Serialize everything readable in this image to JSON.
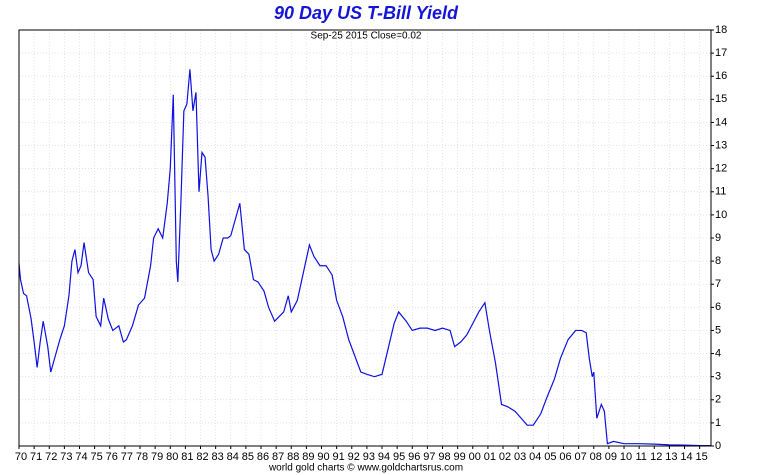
{
  "chart_data": {
    "type": "line",
    "title": "90 Day US T-Bill Yield",
    "subtitle": "Sep-25  2015   Close=0.02",
    "footer": "world gold charts © www.goldchartsrus.com",
    "grid": true,
    "series": [
      {
        "name": "90 Day US T-Bill Yield",
        "color": "#1010e0",
        "x": [
          1970.0,
          1970.1,
          1970.3,
          1970.5,
          1970.8,
          1971.0,
          1971.2,
          1971.4,
          1971.6,
          1971.9,
          1972.1,
          1972.4,
          1972.7,
          1973.0,
          1973.3,
          1973.5,
          1973.7,
          1973.9,
          1974.1,
          1974.3,
          1974.6,
          1974.9,
          1975.1,
          1975.4,
          1975.6,
          1975.9,
          1976.2,
          1976.6,
          1976.9,
          1977.1,
          1977.5,
          1977.9,
          1978.3,
          1978.7,
          1978.9,
          1979.2,
          1979.5,
          1979.8,
          1980.0,
          1980.2,
          1980.4,
          1980.5,
          1980.7,
          1980.9,
          1981.1,
          1981.3,
          1981.5,
          1981.7,
          1981.9,
          1982.1,
          1982.3,
          1982.5,
          1982.7,
          1982.9,
          1983.2,
          1983.5,
          1983.8,
          1984.0,
          1984.3,
          1984.6,
          1984.9,
          1985.2,
          1985.5,
          1985.8,
          1986.2,
          1986.5,
          1986.9,
          1987.2,
          1987.5,
          1987.8,
          1988.0,
          1988.4,
          1988.8,
          1989.2,
          1989.5,
          1989.9,
          1990.3,
          1990.7,
          1991.0,
          1991.4,
          1991.8,
          1992.2,
          1992.6,
          1993.0,
          1993.5,
          1994.0,
          1994.4,
          1994.8,
          1995.1,
          1995.6,
          1996.0,
          1996.5,
          1997.0,
          1997.5,
          1998.0,
          1998.5,
          1998.8,
          1999.2,
          1999.6,
          2000.0,
          2000.4,
          2000.8,
          2001.1,
          2001.5,
          2001.9,
          2002.3,
          2002.8,
          2003.2,
          2003.6,
          2004.0,
          2004.5,
          2004.9,
          2005.4,
          2005.8,
          2006.3,
          2006.8,
          2007.2,
          2007.5,
          2007.7,
          2007.9,
          2008.0,
          2008.2,
          2008.5,
          2008.7,
          2008.9,
          2009.3,
          2010.0,
          2011.0,
          2012.0,
          2013.0,
          2014.0,
          2015.0,
          2015.73
        ],
        "values": [
          7.9,
          7.2,
          6.6,
          6.5,
          5.5,
          4.5,
          3.4,
          4.5,
          5.4,
          4.3,
          3.2,
          3.9,
          4.6,
          5.2,
          6.5,
          8.0,
          8.5,
          7.5,
          7.8,
          8.8,
          7.5,
          7.2,
          5.6,
          5.2,
          6.4,
          5.5,
          5.0,
          5.2,
          4.5,
          4.6,
          5.2,
          6.1,
          6.4,
          7.8,
          9.0,
          9.4,
          9.0,
          10.5,
          12.0,
          15.2,
          8.0,
          7.1,
          10.5,
          14.5,
          14.8,
          16.3,
          14.5,
          15.3,
          11.0,
          12.7,
          12.5,
          10.8,
          8.5,
          8.0,
          8.3,
          9.0,
          9.0,
          9.1,
          9.8,
          10.5,
          8.5,
          8.3,
          7.2,
          7.1,
          6.7,
          6.0,
          5.4,
          5.6,
          5.8,
          6.5,
          5.8,
          6.3,
          7.5,
          8.7,
          8.2,
          7.8,
          7.8,
          7.4,
          6.3,
          5.6,
          4.6,
          3.9,
          3.2,
          3.1,
          3.0,
          3.1,
          4.2,
          5.3,
          5.8,
          5.4,
          5.0,
          5.1,
          5.1,
          5.0,
          5.1,
          5.0,
          4.3,
          4.5,
          4.8,
          5.3,
          5.8,
          6.2,
          5.0,
          3.6,
          1.8,
          1.7,
          1.5,
          1.2,
          0.9,
          0.9,
          1.4,
          2.1,
          2.9,
          3.8,
          4.6,
          5.0,
          5.0,
          4.9,
          3.8,
          3.0,
          3.2,
          1.2,
          1.8,
          1.5,
          0.1,
          0.2,
          0.1,
          0.1,
          0.08,
          0.05,
          0.04,
          0.02,
          0.02
        ]
      }
    ],
    "xlim": [
      1970,
      2015.75
    ],
    "xticks": [
      {
        "value": 1970,
        "label": "70"
      },
      {
        "value": 1971,
        "label": "71"
      },
      {
        "value": 1972,
        "label": "72"
      },
      {
        "value": 1973,
        "label": "73"
      },
      {
        "value": 1974,
        "label": "74"
      },
      {
        "value": 1975,
        "label": "75"
      },
      {
        "value": 1976,
        "label": "76"
      },
      {
        "value": 1977,
        "label": "77"
      },
      {
        "value": 1978,
        "label": "78"
      },
      {
        "value": 1979,
        "label": "79"
      },
      {
        "value": 1980,
        "label": "80"
      },
      {
        "value": 1981,
        "label": "81"
      },
      {
        "value": 1982,
        "label": "82"
      },
      {
        "value": 1983,
        "label": "83"
      },
      {
        "value": 1984,
        "label": "84"
      },
      {
        "value": 1985,
        "label": "85"
      },
      {
        "value": 1986,
        "label": "86"
      },
      {
        "value": 1987,
        "label": "87"
      },
      {
        "value": 1988,
        "label": "88"
      },
      {
        "value": 1989,
        "label": "89"
      },
      {
        "value": 1990,
        "label": "90"
      },
      {
        "value": 1991,
        "label": "91"
      },
      {
        "value": 1992,
        "label": "92"
      },
      {
        "value": 1993,
        "label": "93"
      },
      {
        "value": 1994,
        "label": "94"
      },
      {
        "value": 1995,
        "label": "95"
      },
      {
        "value": 1996,
        "label": "96"
      },
      {
        "value": 1997,
        "label": "97"
      },
      {
        "value": 1998,
        "label": "98"
      },
      {
        "value": 1999,
        "label": "99"
      },
      {
        "value": 2000,
        "label": "00"
      },
      {
        "value": 2001,
        "label": "01"
      },
      {
        "value": 2002,
        "label": "02"
      },
      {
        "value": 2003,
        "label": "03"
      },
      {
        "value": 2004,
        "label": "04"
      },
      {
        "value": 2005,
        "label": "05"
      },
      {
        "value": 2006,
        "label": "06"
      },
      {
        "value": 2007,
        "label": "07"
      },
      {
        "value": 2008,
        "label": "08"
      },
      {
        "value": 2009,
        "label": "09"
      },
      {
        "value": 2010,
        "label": "10"
      },
      {
        "value": 2011,
        "label": "11"
      },
      {
        "value": 2012,
        "label": "12"
      },
      {
        "value": 2013,
        "label": "13"
      },
      {
        "value": 2014,
        "label": "14"
      },
      {
        "value": 2015,
        "label": "15"
      }
    ],
    "ylim": [
      0,
      18
    ],
    "yticks": [
      0,
      1,
      2,
      3,
      4,
      5,
      6,
      7,
      8,
      9,
      10,
      11,
      12,
      13,
      14,
      15,
      16,
      17,
      18
    ]
  }
}
